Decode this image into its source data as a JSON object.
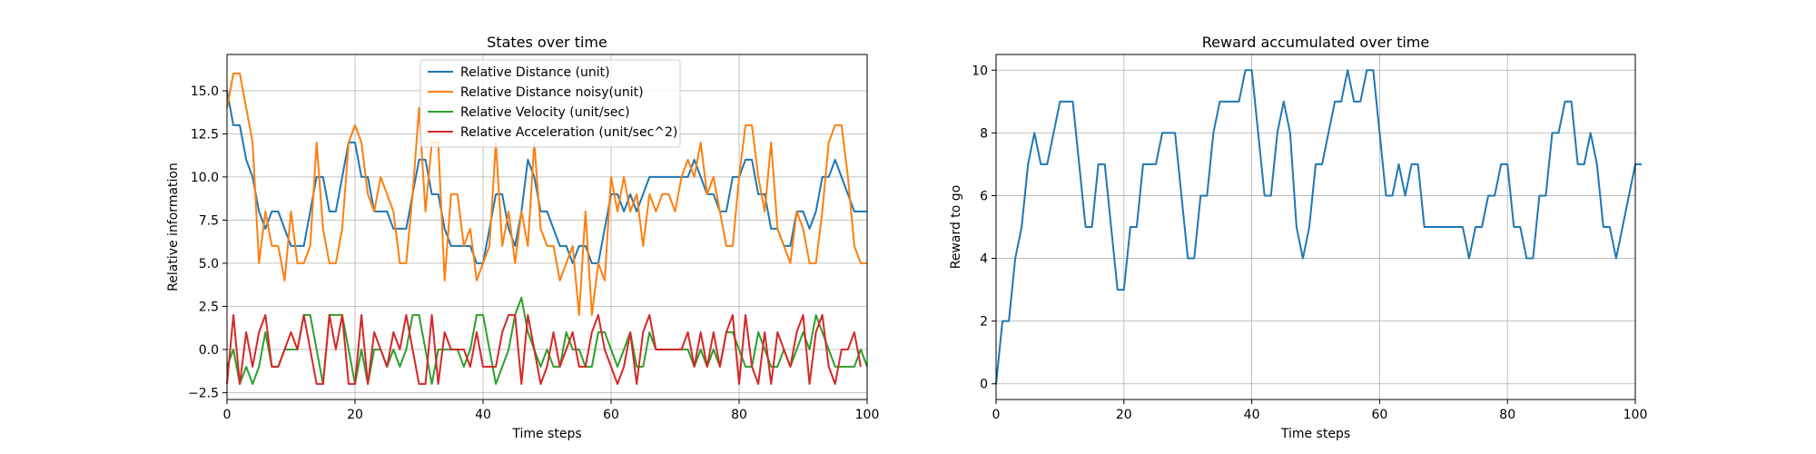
{
  "chart_data": [
    {
      "type": "line",
      "title": "States over time",
      "xlabel": "Time steps",
      "ylabel": "Relative information",
      "xlim": [
        0,
        100
      ],
      "ylim": [
        -2.9,
        17.1
      ],
      "xticks": [
        0,
        20,
        40,
        60,
        80,
        100
      ],
      "xtick_labels": [
        "0",
        "20",
        "40",
        "60",
        "80",
        "100"
      ],
      "yticks": [
        -2.5,
        0,
        2.5,
        5,
        7.5,
        10,
        12.5,
        15
      ],
      "ytick_labels": [
        "−2.5",
        "0.0",
        "2.5",
        "5.0",
        "7.5",
        "10.0",
        "12.5",
        "15.0"
      ],
      "grid": true,
      "legend": "upper center",
      "x_start": 0,
      "x_step": 1,
      "series": [
        {
          "name": "Relative Distance (unit)",
          "color": "#1f77b4",
          "values": [
            15,
            13,
            13,
            11,
            10,
            8,
            7,
            8,
            8,
            7,
            6,
            6,
            6,
            8,
            10,
            10,
            8,
            8,
            10,
            12,
            12,
            10,
            10,
            8,
            8,
            8,
            7,
            7,
            7,
            9,
            11,
            11,
            9,
            9,
            7,
            6,
            6,
            6,
            6,
            5,
            5,
            7,
            9,
            9,
            7,
            6,
            8,
            11,
            10,
            8,
            8,
            7,
            6,
            6,
            5,
            6,
            6,
            5,
            5,
            7,
            9,
            9,
            8,
            9,
            8,
            9,
            10,
            10,
            10,
            10,
            10,
            10,
            10,
            11,
            10,
            9,
            9,
            8,
            8,
            10,
            10,
            11,
            11,
            9,
            9,
            7,
            7,
            6,
            6,
            8,
            8,
            7,
            8,
            10,
            10,
            11,
            10,
            9,
            8,
            8,
            8
          ]
        },
        {
          "name": "Relative Distance noisy(unit)",
          "color": "#ff7f0e",
          "values": [
            14,
            16,
            16,
            14,
            12,
            5,
            8,
            6,
            6,
            4,
            8,
            5,
            5,
            6,
            12,
            7,
            5,
            5,
            7,
            12,
            13,
            12,
            9,
            8,
            10,
            9,
            8,
            5,
            5,
            9,
            14,
            8,
            12,
            12,
            4,
            9,
            9,
            6,
            7,
            4,
            5,
            6,
            12,
            6,
            8,
            5,
            8,
            6,
            12,
            7,
            6,
            6,
            4,
            5,
            6,
            2,
            8,
            2,
            5,
            4,
            10,
            8,
            10,
            8,
            9,
            6,
            9,
            8,
            9,
            9,
            8,
            10,
            11,
            10,
            12,
            9,
            10,
            8,
            6,
            6,
            10,
            13,
            13,
            10,
            8,
            12,
            7,
            6,
            5,
            8,
            7,
            5,
            5,
            8,
            12,
            13,
            13,
            10,
            6,
            5,
            5
          ]
        },
        {
          "name": "Relative Velocity (unit/sec)",
          "color": "#2ca02c",
          "values": [
            -1,
            0,
            -2,
            -1,
            -2,
            -1,
            1,
            -1,
            -1,
            0,
            0,
            0,
            2,
            2,
            0,
            -2,
            2,
            2,
            2,
            0,
            -2,
            0,
            -2,
            0,
            0,
            -1,
            0,
            -1,
            0,
            2,
            2,
            0,
            -2,
            0,
            0,
            0,
            0,
            -1,
            0,
            2,
            2,
            0,
            -2,
            -1,
            0,
            2,
            3,
            1,
            0,
            -1,
            0,
            -1,
            -1,
            1,
            0,
            0,
            -1,
            -1,
            1,
            1,
            0,
            -1,
            0,
            1,
            -1,
            -1,
            1,
            0,
            0,
            0,
            0,
            0,
            0,
            -1,
            0,
            -1,
            0,
            -1,
            1,
            1,
            0,
            -1,
            -1,
            1,
            0,
            -1,
            -1,
            0,
            -1,
            0,
            1,
            0,
            2,
            1,
            0,
            -1,
            -1,
            -1,
            -1,
            0,
            -1
          ]
        },
        {
          "name": "Relative Acceleration (unit/sec^2)",
          "color": "#d62728",
          "values": [
            -2,
            2,
            -2,
            1,
            -1,
            1,
            2,
            -1,
            -1,
            0,
            1,
            0,
            2,
            0,
            -2,
            -2,
            2,
            0,
            2,
            -2,
            -2,
            2,
            -2,
            1,
            0,
            -1,
            1,
            0,
            2,
            0,
            -2,
            -2,
            2,
            -2,
            1,
            0,
            0,
            0,
            -1,
            1,
            -1,
            -1,
            -1,
            1,
            2,
            2,
            -2,
            2,
            0,
            -2,
            -1,
            1,
            -1,
            0,
            1,
            -1,
            -1,
            1,
            2,
            0,
            -1,
            -2,
            -1,
            1,
            -2,
            1,
            2,
            0,
            0,
            0,
            0,
            0,
            1,
            -1,
            1,
            -1,
            1,
            -1,
            1,
            2,
            -2,
            2,
            -1,
            -2,
            1,
            -2,
            1,
            0,
            -1,
            1,
            2,
            -2,
            1,
            2,
            -1,
            -2,
            0,
            0,
            1,
            -1
          ]
        }
      ]
    },
    {
      "type": "line",
      "title": "Reward accumulated over time",
      "xlabel": "Time steps",
      "ylabel": "Reward to go",
      "xlim": [
        0,
        100
      ],
      "ylim": [
        -0.5,
        10.5
      ],
      "xticks": [
        0,
        20,
        40,
        60,
        80,
        100
      ],
      "xtick_labels": [
        "0",
        "20",
        "40",
        "60",
        "80",
        "100"
      ],
      "yticks": [
        0,
        2,
        4,
        6,
        8,
        10
      ],
      "ytick_labels": [
        "0",
        "2",
        "4",
        "6",
        "8",
        "10"
      ],
      "grid": true,
      "x_start": 0,
      "x_step": 1,
      "series": [
        {
          "color": "#1f77b4",
          "values": [
            0,
            2,
            2,
            4,
            5,
            7,
            8,
            7,
            7,
            8,
            9,
            9,
            9,
            7,
            5,
            5,
            7,
            7,
            5,
            3,
            3,
            5,
            5,
            7,
            7,
            7,
            8,
            8,
            8,
            6,
            4,
            4,
            6,
            6,
            8,
            9,
            9,
            9,
            9,
            10,
            10,
            8,
            6,
            6,
            8,
            9,
            8,
            5,
            4,
            5,
            7,
            7,
            8,
            9,
            9,
            10,
            9,
            9,
            10,
            10,
            8,
            6,
            6,
            7,
            6,
            7,
            7,
            5,
            5,
            5,
            5,
            5,
            5,
            5,
            4,
            5,
            5,
            6,
            6,
            7,
            7,
            5,
            5,
            4,
            4,
            6,
            6,
            8,
            8,
            9,
            9,
            7,
            7,
            8,
            7,
            5,
            5,
            4,
            5,
            6,
            7,
            7
          ]
        }
      ]
    }
  ]
}
